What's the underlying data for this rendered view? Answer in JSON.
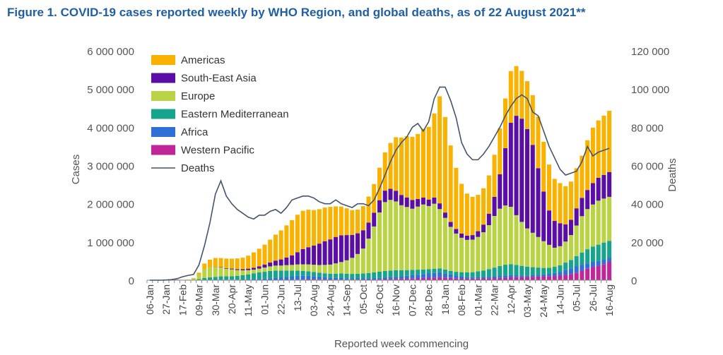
{
  "chart_data": {
    "type": "bar",
    "title": "Figure 1. COVID-19 cases reported weekly by WHO Region, and global deaths, as of 22 August 2021**",
    "xlabel": "Reported week commencing",
    "ylabel": "Cases",
    "y2label": "Deaths",
    "ylim": [
      0,
      6000000
    ],
    "y2lim": [
      0,
      120000
    ],
    "yticks": [
      0,
      1000000,
      2000000,
      3000000,
      4000000,
      5000000,
      6000000
    ],
    "yticklabels": [
      "0",
      "1 000 000",
      "2 000 000",
      "3 000 000",
      "4 000 000",
      "5 000 000",
      "6 000 000"
    ],
    "y2ticks": [
      0,
      20000,
      40000,
      60000,
      80000,
      100000,
      120000
    ],
    "y2ticklabels": [
      "0",
      "20 000",
      "40 000",
      "60 000",
      "80 000",
      "100 000",
      "120 000"
    ],
    "stacked": true,
    "legend_position": "top-left",
    "grid": false,
    "weeks": 85,
    "xtick_every": 3,
    "categories": [
      "06-Jan",
      "13-Jan",
      "20-Jan",
      "27-Jan",
      "03-Feb",
      "10-Feb",
      "17-Feb",
      "24-Feb",
      "02-Mar",
      "09-Mar",
      "16-Mar",
      "23-Mar",
      "30-Mar",
      "06-Apr",
      "13-Apr",
      "20-Apr",
      "27-Apr",
      "04-May",
      "11-May",
      "18-May",
      "25-May",
      "01-Jun",
      "08-Jun",
      "15-Jun",
      "22-Jun",
      "29-Jun",
      "06-Jul",
      "13-Jul",
      "20-Jul",
      "27-Jul",
      "03-Aug",
      "10-Aug",
      "17-Aug",
      "24-Aug",
      "31-Aug",
      "07-Sep",
      "14-Sep",
      "21-Sep",
      "28-Sep",
      "05-Oct",
      "12-Oct",
      "19-Oct",
      "26-Oct",
      "02-Nov",
      "09-Nov",
      "16-Nov",
      "23-Nov",
      "30-Nov",
      "07-Dec",
      "14-Dec",
      "21-Dec",
      "28-Dec",
      "04-Jan",
      "11-Jan",
      "18-Jan",
      "25-Jan",
      "01-Feb",
      "08-Feb",
      "15-Feb",
      "22-Feb",
      "01-Mar",
      "08-Mar",
      "15-Mar",
      "22-Mar",
      "29-Mar",
      "05-Apr",
      "12-Apr",
      "19-Apr",
      "26-Apr",
      "03-May",
      "10-May",
      "17-May",
      "24-May",
      "31-May",
      "07-Jun",
      "14-Jun",
      "21-Jun",
      "28-Jun",
      "05-Jul",
      "12-Jul",
      "19-Jul",
      "26-Jul",
      "02-Aug",
      "09-Aug",
      "16-Aug"
    ],
    "xtick_labels": [
      "06-Jan",
      "27-Jan",
      "17-Feb",
      "09-Mar",
      "30-Mar",
      "20-Apr",
      "11-May",
      "01-Jun",
      "22-Jun",
      "13-Jul",
      "03-Aug",
      "24-Aug",
      "14-Sep",
      "05-Oct",
      "26-Oct",
      "16-Nov",
      "07-Dec",
      "28-Dec",
      "18-Jan",
      "08-Feb",
      "01-Mar",
      "22-Mar",
      "12-Apr",
      "03-May",
      "24-May",
      "14-Jun",
      "05-Jul",
      "26-Jul",
      "16-Aug"
    ],
    "series": [
      {
        "name": "Western Pacific",
        "color": "#c0259a",
        "values": [
          0,
          2000,
          5000,
          15000,
          20000,
          15000,
          8000,
          5000,
          5000,
          6000,
          5000,
          4000,
          4000,
          4000,
          3000,
          3000,
          3000,
          4000,
          4000,
          4000,
          5000,
          5000,
          6000,
          7000,
          8000,
          9000,
          10000,
          12000,
          15000,
          18000,
          20000,
          22000,
          20000,
          18000,
          16000,
          15000,
          15000,
          15000,
          16000,
          17000,
          18000,
          20000,
          22000,
          28000,
          30000,
          35000,
          40000,
          45000,
          50000,
          55000,
          60000,
          65000,
          70000,
          75000,
          70000,
          60000,
          50000,
          45000,
          40000,
          40000,
          42000,
          45000,
          50000,
          55000,
          60000,
          70000,
          75000,
          80000,
          80000,
          85000,
          90000,
          95000,
          100000,
          105000,
          110000,
          120000,
          140000,
          160000,
          200000,
          250000,
          300000,
          350000,
          380000,
          420000,
          480000
        ]
      },
      {
        "name": "Africa",
        "color": "#2f6fd6",
        "values": [
          0,
          0,
          0,
          0,
          0,
          0,
          0,
          0,
          100,
          200,
          500,
          1000,
          3000,
          6000,
          8000,
          10000,
          12000,
          15000,
          18000,
          22000,
          28000,
          35000,
          45000,
          55000,
          65000,
          75000,
          90000,
          100000,
          100000,
          95000,
          85000,
          75000,
          60000,
          50000,
          45000,
          40000,
          35000,
          30000,
          30000,
          30000,
          30000,
          35000,
          40000,
          45000,
          50000,
          55000,
          60000,
          70000,
          80000,
          90000,
          100000,
          110000,
          120000,
          130000,
          110000,
          90000,
          70000,
          55000,
          45000,
          40000,
          40000,
          40000,
          40000,
          45000,
          50000,
          55000,
          55000,
          50000,
          45000,
          40000,
          40000,
          45000,
          50000,
          60000,
          80000,
          100000,
          130000,
          150000,
          160000,
          155000,
          140000,
          130000,
          120000,
          115000,
          110000
        ]
      },
      {
        "name": "Eastern Mediterranean",
        "color": "#16a58c",
        "values": [
          0,
          0,
          0,
          0,
          0,
          0,
          100,
          1000,
          3000,
          20000,
          50000,
          70000,
          80000,
          90000,
          90000,
          90000,
          100000,
          110000,
          130000,
          150000,
          170000,
          180000,
          190000,
          190000,
          180000,
          170000,
          150000,
          140000,
          130000,
          120000,
          110000,
          100000,
          100000,
          100000,
          110000,
          120000,
          120000,
          120000,
          120000,
          130000,
          140000,
          150000,
          160000,
          170000,
          170000,
          170000,
          160000,
          150000,
          140000,
          130000,
          120000,
          115000,
          110000,
          105000,
          100000,
          95000,
          100000,
          110000,
          120000,
          130000,
          150000,
          170000,
          200000,
          230000,
          260000,
          280000,
          290000,
          270000,
          250000,
          230000,
          210000,
          190000,
          170000,
          160000,
          160000,
          170000,
          190000,
          220000,
          270000,
          320000,
          370000,
          400000,
          430000,
          450000,
          440000
        ]
      },
      {
        "name": "Europe",
        "color": "#b8d444",
        "values": [
          0,
          0,
          0,
          0,
          100,
          500,
          2000,
          10000,
          40000,
          120000,
          230000,
          260000,
          260000,
          230000,
          200000,
          180000,
          150000,
          130000,
          110000,
          100000,
          100000,
          110000,
          120000,
          130000,
          130000,
          140000,
          150000,
          160000,
          170000,
          180000,
          190000,
          200000,
          220000,
          240000,
          270000,
          300000,
          350000,
          420000,
          520000,
          650000,
          900000,
          1200000,
          1550000,
          1800000,
          1850000,
          1800000,
          1700000,
          1650000,
          1600000,
          1650000,
          1700000,
          1650000,
          1700000,
          1550000,
          1350000,
          1150000,
          1000000,
          900000,
          850000,
          850000,
          900000,
          1000000,
          1150000,
          1350000,
          1500000,
          1550000,
          1500000,
          1300000,
          1150000,
          1000000,
          900000,
          800000,
          700000,
          600000,
          500000,
          500000,
          550000,
          650000,
          800000,
          950000,
          1050000,
          1100000,
          1150000,
          1150000,
          1150000
        ]
      },
      {
        "name": "South-East Asia",
        "color": "#5b0ea5",
        "values": [
          0,
          0,
          0,
          0,
          0,
          0,
          0,
          0,
          0,
          0,
          100,
          2000,
          5000,
          10000,
          15000,
          20000,
          25000,
          30000,
          40000,
          50000,
          60000,
          80000,
          100000,
          130000,
          160000,
          200000,
          250000,
          320000,
          400000,
          450000,
          500000,
          560000,
          620000,
          660000,
          690000,
          700000,
          660000,
          600000,
          540000,
          480000,
          420000,
          360000,
          320000,
          300000,
          290000,
          280000,
          270000,
          250000,
          230000,
          200000,
          180000,
          170000,
          160000,
          150000,
          140000,
          130000,
          120000,
          110000,
          110000,
          120000,
          150000,
          200000,
          300000,
          500000,
          900000,
          1500000,
          2200000,
          2600000,
          2700000,
          2600000,
          2300000,
          1800000,
          1300000,
          900000,
          700000,
          600000,
          450000,
          400000,
          450000,
          480000,
          500000,
          560000,
          600000,
          620000,
          650000
        ]
      },
      {
        "name": "Americas",
        "color": "#f9b200",
        "values": [
          0,
          0,
          0,
          0,
          0,
          0,
          1000,
          2000,
          10000,
          50000,
          150000,
          200000,
          230000,
          240000,
          250000,
          260000,
          280000,
          300000,
          340000,
          400000,
          460000,
          520000,
          600000,
          680000,
          760000,
          840000,
          920000,
          980000,
          1000000,
          980000,
          930000,
          900000,
          880000,
          850000,
          800000,
          750000,
          700000,
          650000,
          620000,
          630000,
          680000,
          750000,
          850000,
          1000000,
          1200000,
          1400000,
          1500000,
          1600000,
          1650000,
          1700000,
          1800000,
          1900000,
          2200000,
          2800000,
          2500000,
          2000000,
          1600000,
          1300000,
          1100000,
          1000000,
          950000,
          950000,
          1000000,
          1100000,
          1200000,
          1300000,
          1350000,
          1300000,
          1250000,
          1250000,
          1300000,
          1350000,
          1300000,
          1200000,
          1100000,
          1050000,
          1000000,
          1000000,
          1050000,
          1100000,
          1300000,
          1450000,
          1500000,
          1550000,
          1600000
        ]
      }
    ],
    "line_series": {
      "name": "Deaths",
      "color": "#44546a",
      "axis": "right",
      "values": [
        0,
        0,
        0,
        100,
        300,
        800,
        1800,
        2500,
        3000,
        8000,
        18000,
        30000,
        45000,
        52000,
        44000,
        40000,
        37000,
        35000,
        33000,
        32000,
        34000,
        34000,
        36000,
        37000,
        35000,
        38000,
        42000,
        43000,
        44000,
        44000,
        43000,
        41000,
        40000,
        40000,
        42000,
        40000,
        39000,
        38000,
        40000,
        40000,
        39000,
        42000,
        48000,
        55000,
        62000,
        68000,
        72000,
        75000,
        80000,
        82000,
        78000,
        83000,
        95000,
        101000,
        101000,
        94000,
        85000,
        72000,
        66000,
        63000,
        63000,
        66000,
        70000,
        75000,
        80000,
        86000,
        91000,
        95000,
        97000,
        95000,
        88000,
        86000,
        78000,
        70000,
        64000,
        58000,
        55000,
        56000,
        57000,
        62000,
        70000,
        65000,
        67000,
        68000,
        69000
      ]
    },
    "legend": [
      "Americas",
      "South-East Asia",
      "Europe",
      "Eastern Mediterranean",
      "Africa",
      "Western Pacific",
      "Deaths"
    ]
  }
}
